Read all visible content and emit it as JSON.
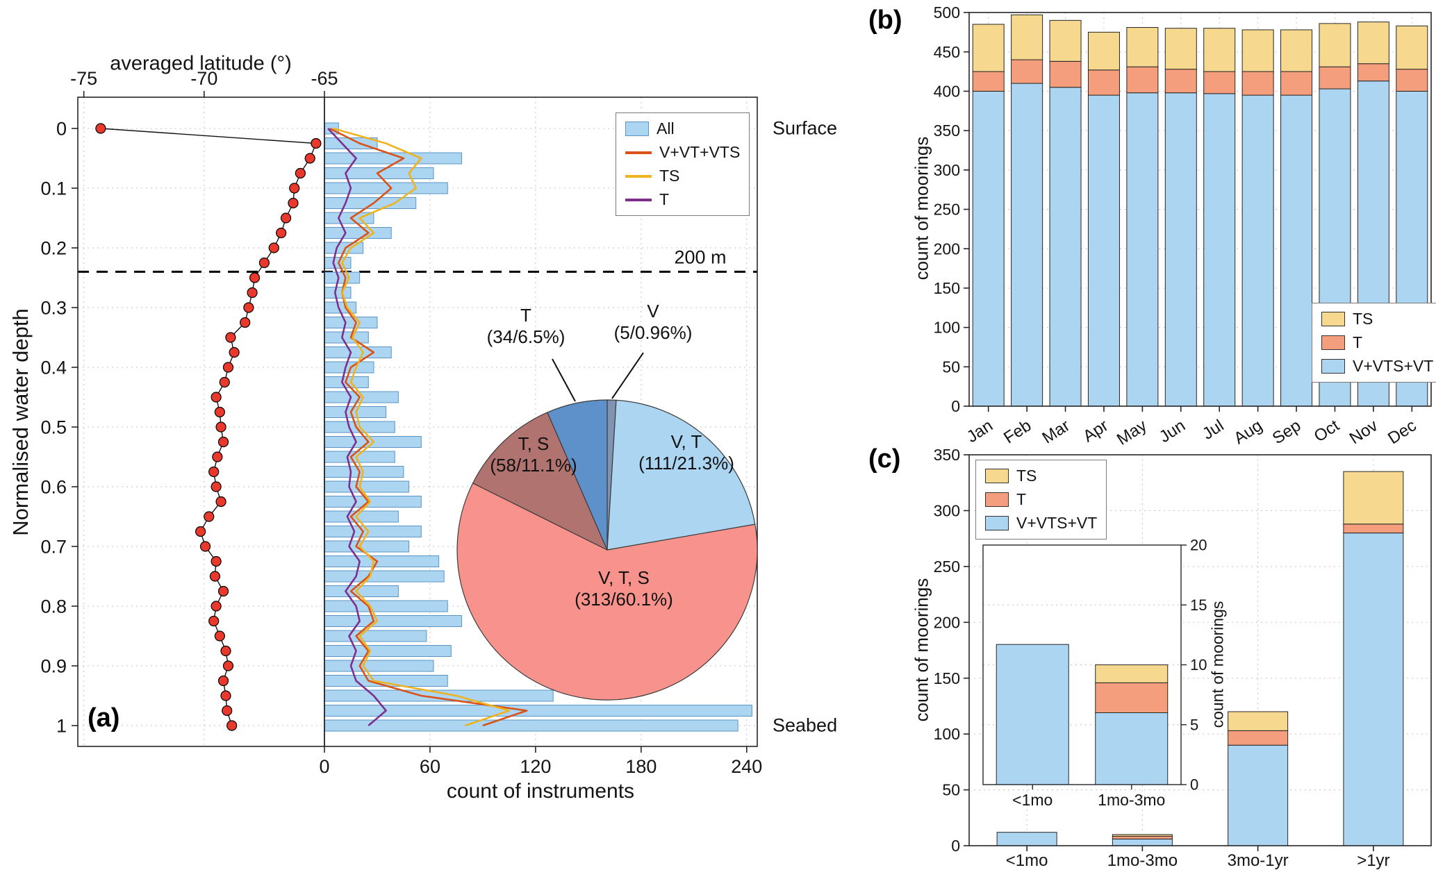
{
  "labels": {
    "panel_a": "(a)",
    "panel_b": "(b)",
    "panel_c": "(c)",
    "a_ylabel": "Normalised water depth",
    "a_xlabel": "count of instruments",
    "a_top_xlabel": "averaged latitude (°)",
    "surface": "Surface",
    "seabed": "Seabed",
    "line200": "200 m",
    "b_ylabel": "count of moorings",
    "c_ylabel": "count of moorings",
    "c_inset_ylabel": "count of moorings"
  },
  "colors": {
    "bar_fill": "#abd5f1",
    "bar_edge": "#5b94c4",
    "stack_blue": "#abd5f1",
    "stack_salmon": "#f59e7d",
    "stack_tan": "#f6d98f",
    "stack_edge": "#262626",
    "line_red": "#d95319",
    "line_yellow": "#eeb321",
    "line_purple": "#7e2f8e",
    "dot_red": "#e8392c",
    "pie_vts": "#f8928c",
    "pie_vt": "#abd5f1",
    "pie_ts": "#b17370",
    "pie_t": "#5e90c9",
    "pie_v": "#8093b3",
    "grid": "#c3c3c3",
    "axis": "#262626"
  },
  "legends": {
    "a": [
      {
        "label": "All",
        "swatch": "patch",
        "color_key": "bar_fill",
        "edge_key": "bar_edge"
      },
      {
        "label": "V+VT+VTS",
        "swatch": "line",
        "color_key": "line_red"
      },
      {
        "label": "TS",
        "swatch": "line",
        "color_key": "line_yellow"
      },
      {
        "label": "T",
        "swatch": "line",
        "color_key": "line_purple"
      }
    ],
    "bc": [
      {
        "label": "TS",
        "swatch": "patch",
        "color_key": "stack_tan"
      },
      {
        "label": "T",
        "swatch": "patch",
        "color_key": "stack_salmon"
      },
      {
        "label": "V+VTS+VT",
        "swatch": "patch",
        "color_key": "stack_blue"
      }
    ]
  },
  "chart_data": [
    {
      "id": "a_latitude_profile",
      "type": "scatter",
      "xlabel": "averaged latitude (°)",
      "ylabel": "Normalised water depth",
      "xlim": [
        -75.25,
        -65
      ],
      "xticks": [
        -75,
        -70,
        -65
      ],
      "ylim": [
        0,
        1
      ],
      "yticks": [
        0,
        0.1,
        0.2,
        0.3,
        0.4,
        0.5,
        0.6,
        0.7,
        0.8,
        0.9,
        1
      ],
      "depths": [
        0,
        0.025,
        0.05,
        0.075,
        0.1,
        0.125,
        0.15,
        0.175,
        0.2,
        0.225,
        0.25,
        0.275,
        0.3,
        0.325,
        0.35,
        0.375,
        0.4,
        0.425,
        0.45,
        0.475,
        0.5,
        0.525,
        0.55,
        0.575,
        0.6,
        0.625,
        0.65,
        0.675,
        0.7,
        0.725,
        0.75,
        0.775,
        0.8,
        0.825,
        0.85,
        0.875,
        0.9,
        0.925,
        0.95,
        0.975,
        1.0
      ],
      "latitude": [
        -74.3,
        -65.35,
        -65.6,
        -66.0,
        -66.25,
        -66.3,
        -66.6,
        -66.8,
        -67.1,
        -67.5,
        -67.9,
        -68.0,
        -68.15,
        -68.3,
        -68.9,
        -68.75,
        -69.0,
        -69.15,
        -69.5,
        -69.35,
        -69.3,
        -69.2,
        -69.45,
        -69.6,
        -69.5,
        -69.3,
        -69.8,
        -70.15,
        -69.95,
        -69.5,
        -69.55,
        -69.2,
        -69.5,
        -69.6,
        -69.35,
        -69.1,
        -69.0,
        -69.2,
        -69.1,
        -69.05,
        -68.85
      ]
    },
    {
      "id": "a_instrument_counts",
      "type": "bar",
      "orientation": "horizontal",
      "xlabel": "count of instruments",
      "xticks": [
        0,
        60,
        120,
        180,
        240
      ],
      "xlim": [
        0,
        246
      ],
      "depth_line": {
        "label": "200 m",
        "depth": 0.24
      },
      "surface_label": "Surface",
      "seabed_label": "Seabed",
      "depths": [
        0,
        0.025,
        0.05,
        0.075,
        0.1,
        0.125,
        0.15,
        0.175,
        0.2,
        0.225,
        0.25,
        0.275,
        0.3,
        0.325,
        0.35,
        0.375,
        0.4,
        0.425,
        0.45,
        0.475,
        0.5,
        0.525,
        0.55,
        0.575,
        0.6,
        0.625,
        0.65,
        0.675,
        0.7,
        0.725,
        0.75,
        0.775,
        0.8,
        0.825,
        0.85,
        0.875,
        0.9,
        0.925,
        0.95,
        0.975,
        1.0
      ],
      "series": [
        {
          "name": "All",
          "kind": "bar",
          "color_key": "bar_fill",
          "values": [
            8,
            30,
            78,
            62,
            70,
            52,
            28,
            38,
            22,
            15,
            20,
            15,
            18,
            30,
            25,
            38,
            28,
            25,
            42,
            35,
            40,
            55,
            40,
            45,
            48,
            55,
            42,
            55,
            48,
            65,
            68,
            42,
            70,
            78,
            58,
            72,
            62,
            70,
            130,
            243,
            235
          ]
        },
        {
          "name": "V+VT+VTS",
          "kind": "line",
          "color_key": "line_red",
          "values": [
            3,
            20,
            45,
            30,
            38,
            28,
            15,
            25,
            12,
            8,
            12,
            10,
            12,
            18,
            15,
            28,
            15,
            12,
            20,
            15,
            18,
            25,
            15,
            20,
            18,
            25,
            15,
            22,
            18,
            30,
            25,
            15,
            25,
            28,
            18,
            25,
            20,
            25,
            55,
            115,
            90
          ]
        },
        {
          "name": "TS",
          "kind": "line",
          "color_key": "line_yellow",
          "values": [
            5,
            35,
            55,
            48,
            52,
            40,
            20,
            28,
            15,
            10,
            14,
            10,
            13,
            20,
            16,
            22,
            18,
            15,
            22,
            18,
            20,
            28,
            18,
            22,
            20,
            26,
            18,
            25,
            20,
            28,
            26,
            18,
            26,
            30,
            20,
            26,
            22,
            28,
            75,
            105,
            80
          ]
        },
        {
          "name": "T",
          "kind": "line",
          "color_key": "line_purple",
          "values": [
            2,
            10,
            18,
            12,
            15,
            12,
            8,
            12,
            7,
            5,
            8,
            6,
            8,
            12,
            10,
            15,
            12,
            10,
            15,
            12,
            14,
            18,
            13,
            15,
            14,
            18,
            13,
            17,
            14,
            20,
            18,
            12,
            18,
            20,
            14,
            18,
            15,
            18,
            28,
            35,
            25
          ]
        }
      ]
    },
    {
      "id": "a_instrument_type_pie",
      "type": "pie",
      "slices": [
        {
          "label": "V",
          "count": 5,
          "pct": "0.96%",
          "color_key": "pie_v"
        },
        {
          "label": "V, T",
          "count": 111,
          "pct": "21.3%",
          "color_key": "pie_vt"
        },
        {
          "label": "V, T, S",
          "count": 313,
          "pct": "60.1%",
          "color_key": "pie_vts"
        },
        {
          "label": "T, S",
          "count": 58,
          "pct": "11.1%",
          "color_key": "pie_ts"
        },
        {
          "label": "T",
          "count": 34,
          "pct": "6.5%",
          "color_key": "pie_t"
        }
      ]
    },
    {
      "id": "b_moorings_by_month",
      "type": "bar",
      "stacked": true,
      "ylabel": "count of moorings",
      "ylim": [
        0,
        500
      ],
      "yticks": [
        0,
        50,
        100,
        150,
        200,
        250,
        300,
        350,
        400,
        450,
        500
      ],
      "categories": [
        "Jan",
        "Feb",
        "Mar",
        "Apr",
        "May",
        "Jun",
        "Jul",
        "Aug",
        "Sep",
        "Oct",
        "Nov",
        "Dec"
      ],
      "series": [
        {
          "name": "V+VTS+VT",
          "color_key": "stack_blue",
          "values": [
            400,
            410,
            405,
            395,
            398,
            398,
            397,
            395,
            395,
            403,
            413,
            400
          ]
        },
        {
          "name": "T",
          "color_key": "stack_salmon",
          "values": [
            25,
            30,
            33,
            32,
            33,
            30,
            28,
            30,
            30,
            28,
            22,
            28
          ]
        },
        {
          "name": "TS",
          "color_key": "stack_tan",
          "values": [
            60,
            57,
            52,
            48,
            50,
            52,
            55,
            53,
            53,
            55,
            53,
            55
          ]
        }
      ],
      "legend_order": [
        "TS",
        "T",
        "V+VTS+VT"
      ]
    },
    {
      "id": "c_moorings_by_duration",
      "type": "bar",
      "stacked": true,
      "ylabel": "count of moorings",
      "ylim": [
        0,
        350
      ],
      "yticks": [
        0,
        50,
        100,
        150,
        200,
        250,
        300,
        350
      ],
      "categories": [
        "<1mo",
        "1mo-3mo",
        "3mo-1yr",
        ">1yr"
      ],
      "series": [
        {
          "name": "V+VTS+VT",
          "color_key": "stack_blue",
          "values": [
            12,
            6,
            90,
            280
          ]
        },
        {
          "name": "T",
          "color_key": "stack_salmon",
          "values": [
            0,
            2.5,
            13,
            8
          ]
        },
        {
          "name": "TS",
          "color_key": "stack_tan",
          "values": [
            0,
            1.5,
            17,
            47
          ]
        }
      ],
      "legend_order": [
        "TS",
        "T",
        "V+VTS+VT"
      ]
    },
    {
      "id": "c_inset_short_durations",
      "type": "bar",
      "stacked": true,
      "ylabel": "count of moorings",
      "ylim": [
        0,
        20
      ],
      "yticks": [
        0,
        5,
        10,
        15,
        20
      ],
      "categories": [
        "<1mo",
        "1mo-3mo"
      ],
      "series": [
        {
          "name": "V+VTS+VT",
          "color_key": "stack_blue",
          "values": [
            11.7,
            6
          ]
        },
        {
          "name": "T",
          "color_key": "stack_salmon",
          "values": [
            0,
            2.5
          ]
        },
        {
          "name": "TS",
          "color_key": "stack_tan",
          "values": [
            0,
            1.5
          ]
        }
      ]
    }
  ]
}
